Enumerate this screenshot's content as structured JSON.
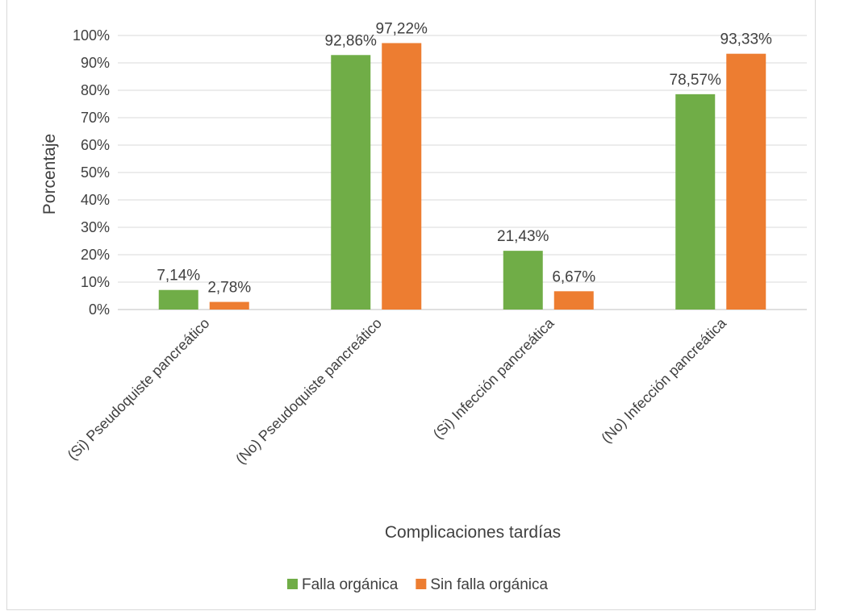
{
  "chart_data": {
    "type": "bar",
    "title": "",
    "xlabel": "Complicaciones tardías",
    "ylabel": "Porcentaje",
    "ylim": [
      0,
      100
    ],
    "y_ticks": [
      "0%",
      "10%",
      "20%",
      "30%",
      "40%",
      "50%",
      "60%",
      "70%",
      "80%",
      "90%",
      "100%"
    ],
    "categories": [
      "(Si) Pseudoquiste pancreático",
      "(No) Pseudoquiste pancreático",
      "(Si) Infección pancreática",
      "(No) Infección pancreática"
    ],
    "series": [
      {
        "name": "Falla orgánica",
        "color": "#70ad47",
        "values": [
          7.14,
          92.86,
          21.43,
          78.57
        ],
        "labels": [
          "7,14%",
          "92,86%",
          "21,43%",
          "78,57%"
        ]
      },
      {
        "name": "Sin falla orgánica",
        "color": "#ed7d31",
        "values": [
          2.78,
          97.22,
          6.67,
          93.33
        ],
        "labels": [
          "2,78%",
          "97,22%",
          "6,67%",
          "93,33%"
        ]
      }
    ],
    "grid": true,
    "legend_position": "bottom"
  }
}
